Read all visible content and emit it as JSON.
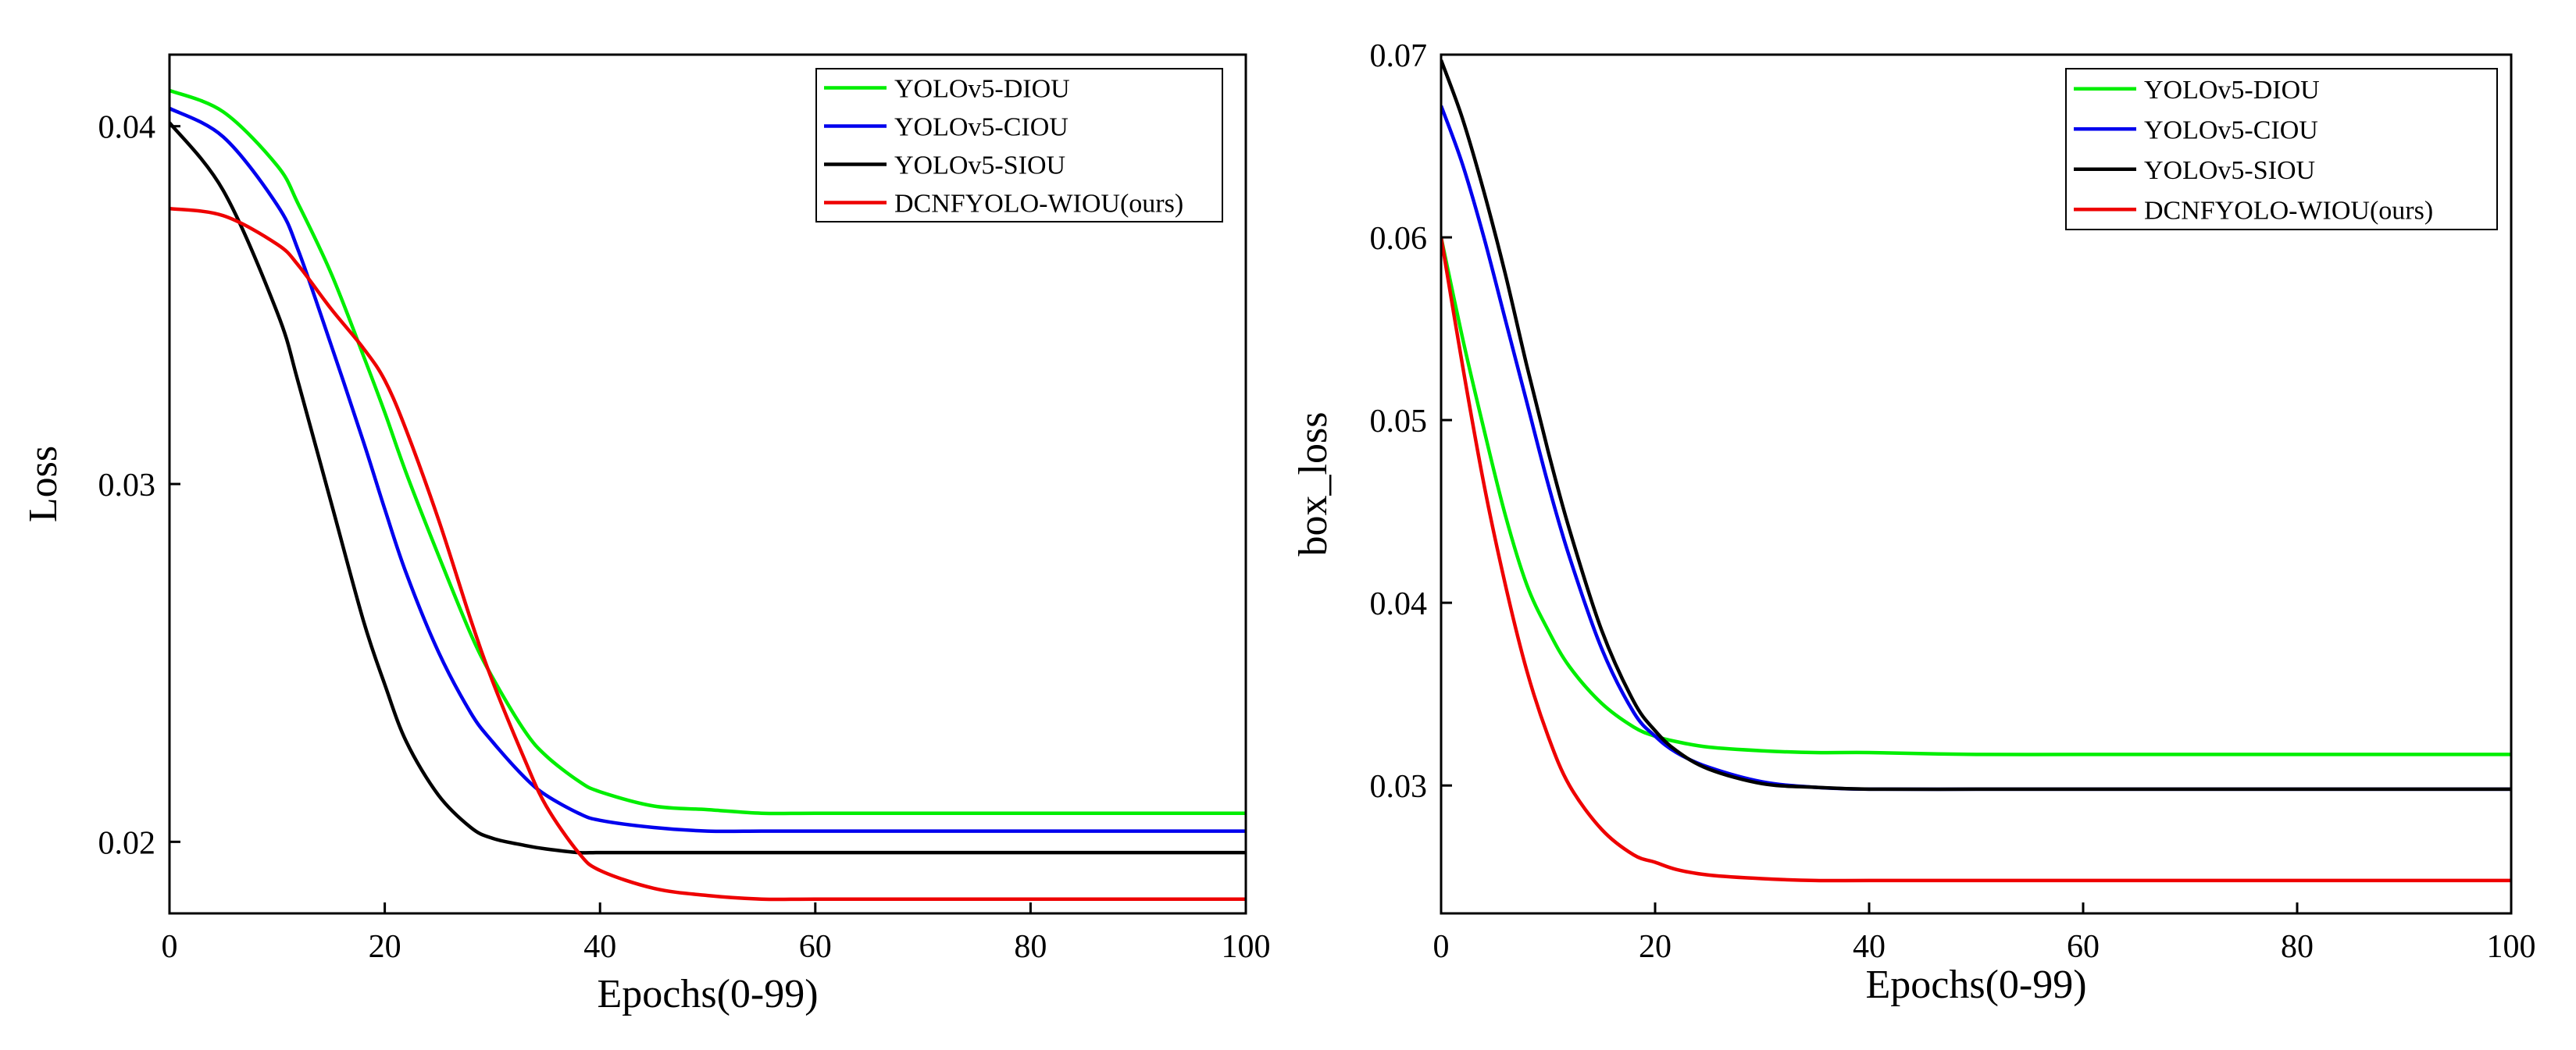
{
  "chart_data": [
    {
      "type": "line",
      "id": "left",
      "title": "",
      "xlabel": "Epochs(0-99)",
      "ylabel": "Loss",
      "xlim": [
        0,
        100
      ],
      "ylim": [
        0.018,
        0.042
      ],
      "xticks": [
        0,
        20,
        40,
        60,
        80,
        100
      ],
      "xtick_labels": [
        "0",
        "20",
        "40",
        "60",
        "80",
        "100"
      ],
      "yticks": [
        0.02,
        0.03,
        0.04
      ],
      "ytick_labels": [
        "0.02",
        "0.03",
        "0.04"
      ],
      "legend_position": "top-right",
      "x": [
        0,
        5,
        10,
        12,
        15,
        18,
        20,
        22,
        25,
        28,
        30,
        33,
        35,
        38,
        40,
        45,
        50,
        55,
        60,
        70,
        80,
        90,
        100
      ],
      "series": [
        {
          "name": "YOLOv5-DIOU",
          "color": "#00ee00",
          "values": [
            0.041,
            0.0404,
            0.0389,
            0.0378,
            0.0359,
            0.0336,
            0.032,
            0.0303,
            0.028,
            0.0258,
            0.0246,
            0.0231,
            0.0224,
            0.0217,
            0.0214,
            0.021,
            0.0209,
            0.0208,
            0.0208,
            0.0208,
            0.0208,
            0.0208,
            0.0208
          ]
        },
        {
          "name": "YOLOv5-CIOU",
          "color": "#0000ee",
          "values": [
            0.0405,
            0.0397,
            0.0378,
            0.0365,
            0.0339,
            0.0312,
            0.0293,
            0.0275,
            0.0253,
            0.0236,
            0.0228,
            0.0218,
            0.0213,
            0.0208,
            0.0206,
            0.0204,
            0.0203,
            0.0203,
            0.0203,
            0.0203,
            0.0203,
            0.0203,
            0.0203
          ]
        },
        {
          "name": "YOLOv5-SIOU",
          "color": "#000000",
          "values": [
            0.0401,
            0.0382,
            0.0348,
            0.0328,
            0.0295,
            0.0262,
            0.0244,
            0.0228,
            0.0213,
            0.0204,
            0.0201,
            0.0199,
            0.0198,
            0.0197,
            0.0197,
            0.0197,
            0.0197,
            0.0197,
            0.0197,
            0.0197,
            0.0197,
            0.0197,
            0.0197
          ]
        },
        {
          "name": "DCNFYOLO-WIOU(ours)",
          "color": "#ee0000",
          "values": [
            0.0377,
            0.0375,
            0.0367,
            0.0361,
            0.0349,
            0.0338,
            0.0329,
            0.0315,
            0.029,
            0.0262,
            0.0245,
            0.0223,
            0.021,
            0.0197,
            0.0192,
            0.0187,
            0.0185,
            0.0184,
            0.0184,
            0.0184,
            0.0184,
            0.0184,
            0.0184
          ]
        }
      ]
    },
    {
      "type": "line",
      "id": "right",
      "title": "",
      "xlabel": "Epochs(0-99)",
      "ylabel": "box_loss",
      "xlim": [
        0,
        100
      ],
      "ylim": [
        0.023,
        0.07
      ],
      "xticks": [
        0,
        20,
        40,
        60,
        80,
        100
      ],
      "xtick_labels": [
        "0",
        "20",
        "40",
        "60",
        "80",
        "100"
      ],
      "yticks": [
        0.03,
        0.04,
        0.05,
        0.06,
        0.07
      ],
      "ytick_labels": [
        "0.03",
        "0.04",
        "0.05",
        "0.06",
        "0.07"
      ],
      "legend_position": "top-right",
      "x": [
        0,
        2,
        4,
        6,
        8,
        10,
        12,
        15,
        18,
        20,
        22,
        25,
        30,
        35,
        40,
        50,
        60,
        70,
        80,
        90,
        100
      ],
      "series": [
        {
          "name": "YOLOv5-DIOU",
          "color": "#00ee00",
          "values": [
            0.06,
            0.0545,
            0.0495,
            0.0448,
            0.041,
            0.0385,
            0.0365,
            0.0345,
            0.0332,
            0.0327,
            0.0324,
            0.0321,
            0.0319,
            0.0318,
            0.0318,
            0.0317,
            0.0317,
            0.0317,
            0.0317,
            0.0317,
            0.0317
          ]
        },
        {
          "name": "YOLOv5-CIOU",
          "color": "#0000ee",
          "values": [
            0.0672,
            0.064,
            0.06,
            0.0555,
            0.051,
            0.0465,
            0.0425,
            0.0375,
            0.034,
            0.0327,
            0.0318,
            0.031,
            0.0302,
            0.0299,
            0.0298,
            0.0298,
            0.0298,
            0.0298,
            0.0298,
            0.0298,
            0.0298
          ]
        },
        {
          "name": "YOLOv5-SIOU",
          "color": "#000000",
          "values": [
            0.0697,
            0.0665,
            0.0625,
            0.058,
            0.053,
            0.0483,
            0.044,
            0.0385,
            0.0346,
            0.033,
            0.0319,
            0.0309,
            0.0301,
            0.0299,
            0.0298,
            0.0298,
            0.0298,
            0.0298,
            0.0298,
            0.0298,
            0.0298
          ]
        },
        {
          "name": "DCNFYOLO-WIOU(ours)",
          "color": "#ee0000",
          "values": [
            0.06,
            0.053,
            0.0465,
            0.041,
            0.0363,
            0.0327,
            0.03,
            0.0276,
            0.0262,
            0.0258,
            0.0254,
            0.0251,
            0.0249,
            0.0248,
            0.0248,
            0.0248,
            0.0248,
            0.0248,
            0.0248,
            0.0248,
            0.0248
          ]
        }
      ]
    }
  ]
}
